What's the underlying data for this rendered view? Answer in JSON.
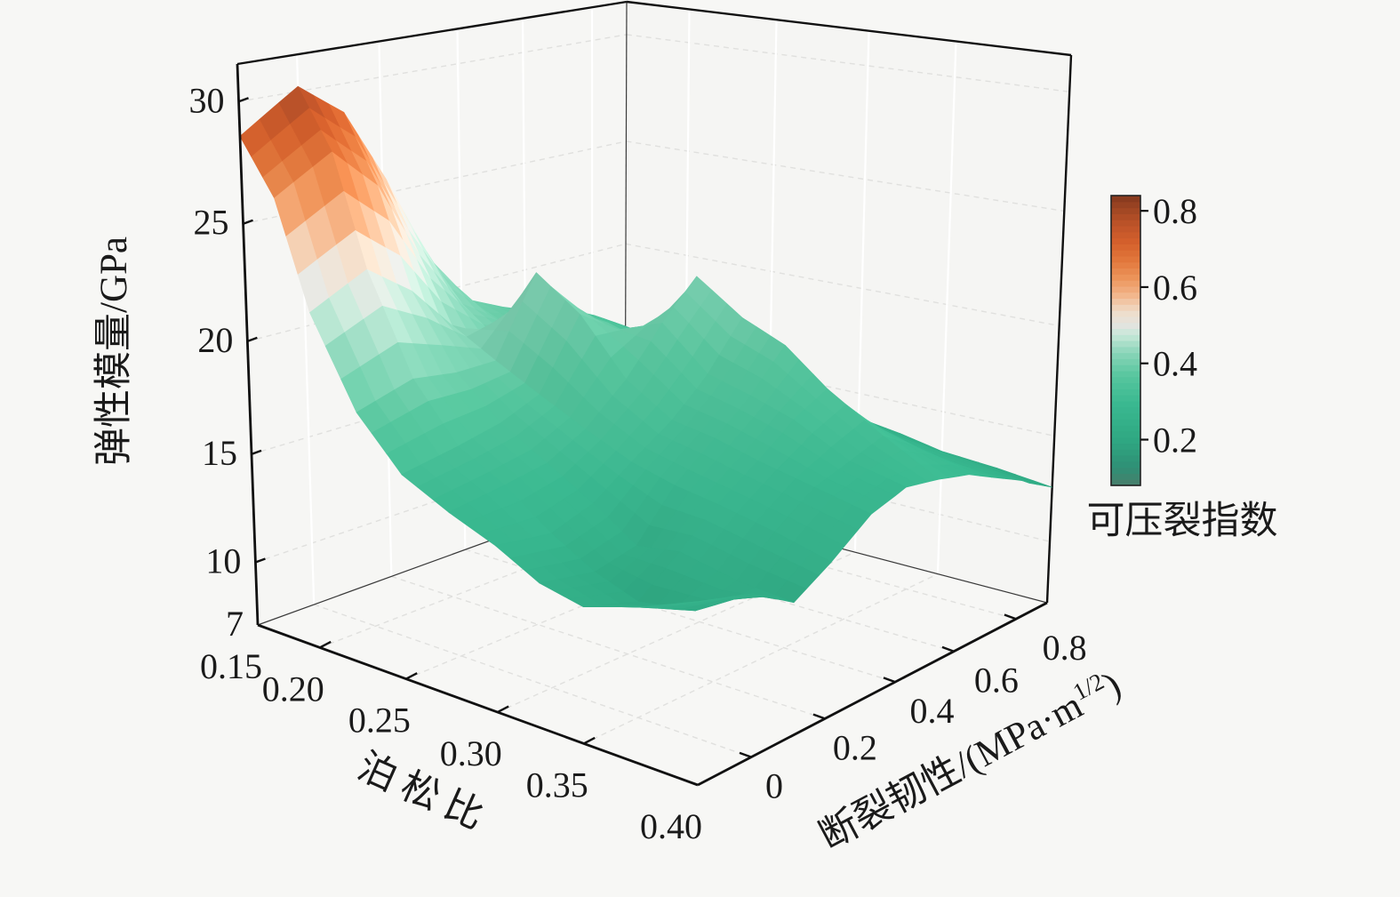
{
  "chart_data": {
    "type": "surface3d",
    "title": "",
    "axes": {
      "z": {
        "label": "弹性模量/GPa",
        "tick_labels": [
          "7",
          "10",
          "15",
          "20",
          "25",
          "30"
        ],
        "range": [
          7,
          31.5
        ]
      },
      "x": {
        "label": "泊松比",
        "tick_labels": [
          "0.15",
          "0.20",
          "0.25",
          "0.30",
          "0.35",
          "0.40"
        ],
        "range": [
          0.15,
          0.4
        ]
      },
      "y": {
        "label_main": "断裂韧性/(MPa·m",
        "label_sup": "1/2",
        "label_close": ")",
        "tick_labels": [
          "0",
          "0.2",
          "0.4",
          "0.6",
          "0.8"
        ],
        "range": [
          -0.1,
          0.95
        ]
      }
    },
    "colorbar": {
      "label": "可压裂指数",
      "tick_labels": [
        "0.2",
        "0.4",
        "0.6",
        "0.8"
      ],
      "range": [
        0.08,
        0.84
      ],
      "stops": [
        [
          0.0,
          "#4a7e6b"
        ],
        [
          0.06,
          "#2f8f75"
        ],
        [
          0.16,
          "#2fa882"
        ],
        [
          0.28,
          "#3ab890"
        ],
        [
          0.38,
          "#57c69e"
        ],
        [
          0.46,
          "#8bd5b9"
        ],
        [
          0.52,
          "#c6e8d8"
        ],
        [
          0.555,
          "#e3e4e0"
        ],
        [
          0.6,
          "#efddca"
        ],
        [
          0.66,
          "#f2b489"
        ],
        [
          0.72,
          "#ec9258"
        ],
        [
          0.78,
          "#e1763b"
        ],
        [
          0.84,
          "#d4602c"
        ],
        [
          0.9,
          "#bd5329"
        ],
        [
          0.96,
          "#9d4523"
        ],
        [
          1.0,
          "#83381d"
        ]
      ]
    },
    "surface": {
      "poisson": [
        0.15,
        0.175,
        0.2,
        0.225,
        0.25,
        0.275,
        0.3,
        0.325,
        0.35,
        0.375,
        0.4
      ],
      "toughness": [
        -0.1,
        0.0,
        0.11,
        0.21,
        0.32,
        0.42,
        0.53,
        0.63,
        0.74,
        0.84,
        0.95
      ],
      "modulus_grid": [
        [
          28.6,
          30.2,
          28.8,
          25.6,
          21.6,
          19.3,
          18.5,
          17.9,
          17.4,
          16.6,
          15.8
        ],
        [
          26.4,
          27.8,
          26.0,
          22.6,
          19.9,
          18.7,
          18.3,
          17.7,
          17.2,
          16.4,
          15.5
        ],
        [
          22.0,
          23.2,
          21.8,
          19.8,
          18.8,
          18.5,
          18.7,
          17.9,
          17.1,
          16.1,
          15.2
        ],
        [
          18.3,
          19.0,
          18.7,
          18.7,
          22.1,
          19.9,
          18.9,
          17.7,
          16.8,
          15.8,
          14.8
        ],
        [
          16.2,
          16.6,
          17.0,
          17.7,
          20.7,
          19.5,
          18.3,
          17.3,
          16.3,
          15.4,
          14.4
        ],
        [
          15.2,
          15.5,
          15.8,
          16.7,
          18.3,
          20.3,
          21.9,
          17.7,
          15.9,
          15.0,
          14.1
        ],
        [
          14.4,
          14.0,
          14.6,
          15.8,
          17.0,
          18.5,
          20.5,
          17.2,
          15.4,
          14.6,
          13.8
        ],
        [
          13.4,
          12.9,
          13.3,
          15.3,
          16.7,
          18.0,
          19.7,
          16.9,
          15.1,
          14.2,
          13.5
        ],
        [
          13.0,
          12.2,
          13.6,
          15.0,
          16.2,
          17.4,
          18.2,
          16.4,
          14.7,
          13.9,
          13.1
        ],
        [
          13.8,
          12.6,
          13.1,
          14.5,
          15.7,
          16.2,
          16.7,
          15.7,
          14.3,
          13.6,
          12.9
        ],
        [
          14.8,
          14.1,
          12.9,
          13.9,
          15.2,
          15.7,
          15.4,
          15.0,
          14.1,
          13.3,
          12.6
        ]
      ],
      "fracability_grid": [
        [
          0.72,
          0.8,
          0.7,
          0.55,
          0.44,
          0.4,
          0.38,
          0.37,
          0.36,
          0.33,
          0.3
        ],
        [
          0.62,
          0.68,
          0.6,
          0.48,
          0.42,
          0.39,
          0.38,
          0.36,
          0.35,
          0.32,
          0.29
        ],
        [
          0.47,
          0.52,
          0.47,
          0.43,
          0.4,
          0.38,
          0.38,
          0.36,
          0.34,
          0.31,
          0.28
        ],
        [
          0.38,
          0.41,
          0.4,
          0.4,
          0.42,
          0.4,
          0.38,
          0.36,
          0.33,
          0.3,
          0.27
        ],
        [
          0.32,
          0.33,
          0.34,
          0.36,
          0.4,
          0.39,
          0.37,
          0.35,
          0.32,
          0.29,
          0.26
        ],
        [
          0.29,
          0.3,
          0.31,
          0.33,
          0.36,
          0.39,
          0.41,
          0.34,
          0.31,
          0.28,
          0.25
        ],
        [
          0.27,
          0.27,
          0.28,
          0.31,
          0.33,
          0.36,
          0.4,
          0.33,
          0.3,
          0.27,
          0.24
        ],
        [
          0.24,
          0.22,
          0.24,
          0.3,
          0.32,
          0.35,
          0.38,
          0.33,
          0.29,
          0.26,
          0.23
        ],
        [
          0.23,
          0.2,
          0.25,
          0.29,
          0.31,
          0.33,
          0.35,
          0.32,
          0.28,
          0.25,
          0.22
        ],
        [
          0.25,
          0.21,
          0.23,
          0.27,
          0.29,
          0.3,
          0.31,
          0.3,
          0.27,
          0.24,
          0.21
        ],
        [
          0.27,
          0.24,
          0.21,
          0.26,
          0.28,
          0.29,
          0.3,
          0.29,
          0.26,
          0.23,
          0.2
        ]
      ]
    }
  }
}
